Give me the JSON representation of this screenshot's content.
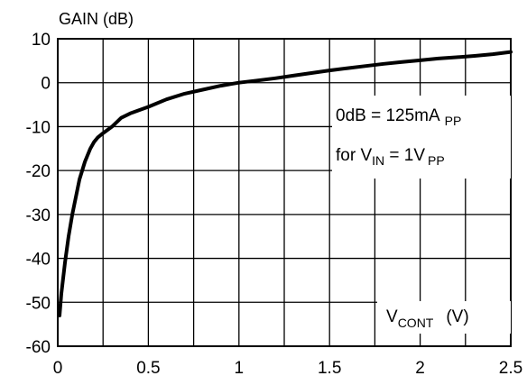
{
  "chart_data": {
    "type": "line",
    "title": "",
    "ylabel": "GAIN (dB)",
    "xlabel": {
      "main": "V",
      "sub": "CONT",
      "unit": "(V)"
    },
    "xlim": [
      0,
      2.5
    ],
    "ylim": [
      -60,
      10
    ],
    "x_ticks": [
      0,
      0.5,
      1,
      1.5,
      2,
      2.5
    ],
    "x_tick_labels": [
      "0",
      "0.5",
      "1",
      "1.5",
      "2",
      "2.5"
    ],
    "y_ticks": [
      10,
      0,
      -10,
      -20,
      -30,
      -40,
      -50,
      -60
    ],
    "y_tick_labels": [
      "10",
      "0",
      "-10",
      "-20",
      "-30",
      "-40",
      "-50",
      "-60"
    ],
    "x_minor_step": 0.25,
    "grid": true,
    "annotations": {
      "line1": {
        "main": "0dB = 125mA",
        "sub": "PP"
      },
      "line2": {
        "pre": "for V",
        "sub1": "IN",
        "mid": " = 1V",
        "sub2": "PP"
      }
    },
    "series": [
      {
        "color": "#000000",
        "x": [
          0.01,
          0.02,
          0.04,
          0.06,
          0.08,
          0.1,
          0.12,
          0.15,
          0.18,
          0.2,
          0.22,
          0.25,
          0.3,
          0.35,
          0.4,
          0.5,
          0.6,
          0.7,
          0.8,
          0.9,
          1.0,
          1.1,
          1.2,
          1.3,
          1.4,
          1.5,
          1.6,
          1.7,
          1.8,
          1.9,
          2.0,
          2.1,
          2.2,
          2.3,
          2.4,
          2.5
        ],
        "y": [
          -53,
          -48,
          -41,
          -35,
          -30,
          -26,
          -22,
          -18,
          -15,
          -13.5,
          -12.5,
          -11.5,
          -10,
          -8,
          -7,
          -5.5,
          -3.8,
          -2.5,
          -1.6,
          -0.7,
          0,
          0.5,
          1.0,
          1.6,
          2.2,
          2.8,
          3.3,
          3.8,
          4.3,
          4.7,
          5.1,
          5.5,
          5.8,
          6.1,
          6.5,
          7.0
        ]
      }
    ]
  }
}
